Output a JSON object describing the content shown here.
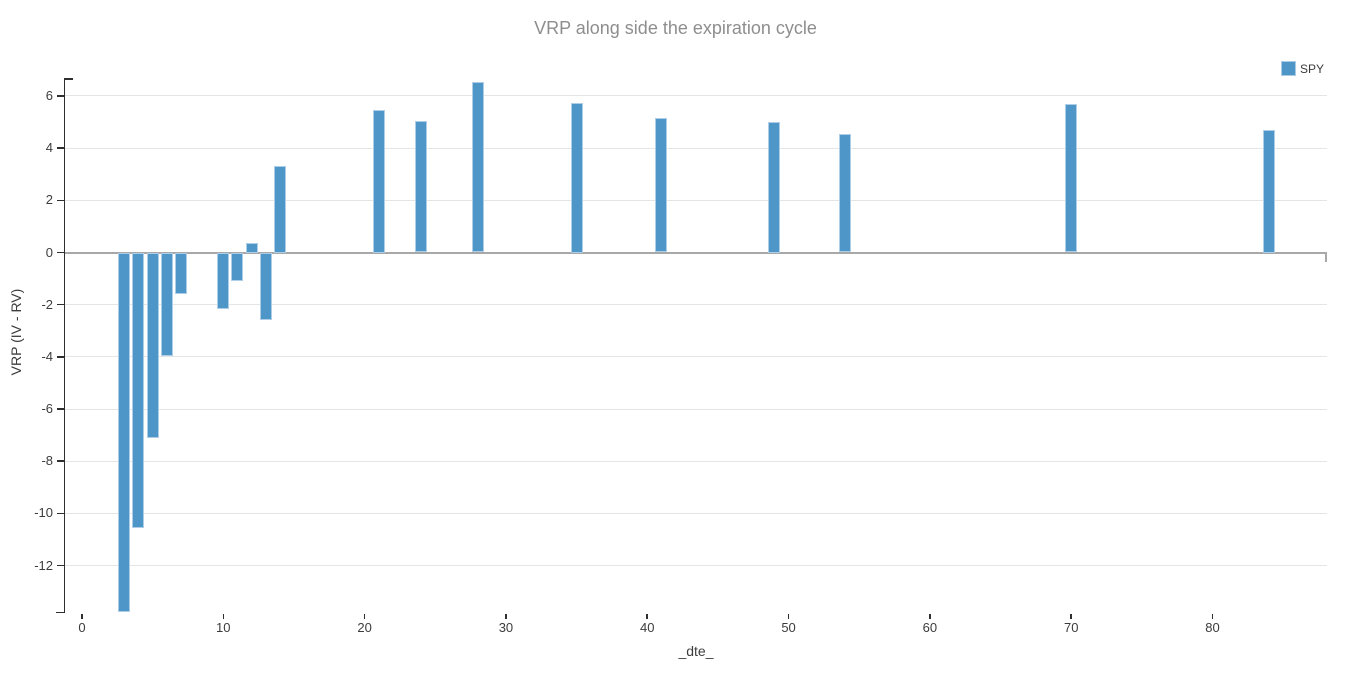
{
  "chart_data": {
    "type": "bar",
    "title": "VRP along side the expiration cycle",
    "xlabel": "_dte_",
    "ylabel": "VRP (IV - RV)",
    "legend": [
      "SPY"
    ],
    "legend_position": "top-right",
    "grid": "horizontal-only",
    "xticks": [
      0,
      10,
      20,
      30,
      40,
      50,
      60,
      70,
      80
    ],
    "yticks": [
      6,
      4,
      2,
      0,
      -2,
      -4,
      -6,
      -8,
      -10,
      -12
    ],
    "xlim": [
      -1.2,
      88.1
    ],
    "ylim": [
      -13.82,
      6.69
    ],
    "bar_width_units": 0.85,
    "series": [
      {
        "name": "SPY",
        "points": [
          {
            "x": 3,
            "y": -13.8
          },
          {
            "x": 4,
            "y": -10.55
          },
          {
            "x": 5,
            "y": -7.1
          },
          {
            "x": 6,
            "y": -3.95
          },
          {
            "x": 7,
            "y": -1.6
          },
          {
            "x": 10,
            "y": -2.15
          },
          {
            "x": 11,
            "y": -1.1
          },
          {
            "x": 12,
            "y": 0.35
          },
          {
            "x": 13,
            "y": -2.6
          },
          {
            "x": 14,
            "y": 3.3
          },
          {
            "x": 21,
            "y": 5.45
          },
          {
            "x": 24,
            "y": 5.05
          },
          {
            "x": 28,
            "y": 6.55
          },
          {
            "x": 35,
            "y": 5.75
          },
          {
            "x": 41,
            "y": 5.15
          },
          {
            "x": 49,
            "y": 5.0
          },
          {
            "x": 54,
            "y": 4.55
          },
          {
            "x": 70,
            "y": 5.7
          },
          {
            "x": 84,
            "y": 4.7
          }
        ]
      }
    ],
    "colors": {
      "bar_fill": "#4e96c8",
      "bar_edge": "#aecde6",
      "zero_line": "#a8a8a8",
      "grid": "#e5e5e5",
      "axis": "#2f2f2f",
      "tick_label": "#3c3c3c",
      "title": "#8e8e8e",
      "background": "#ffffff"
    }
  }
}
